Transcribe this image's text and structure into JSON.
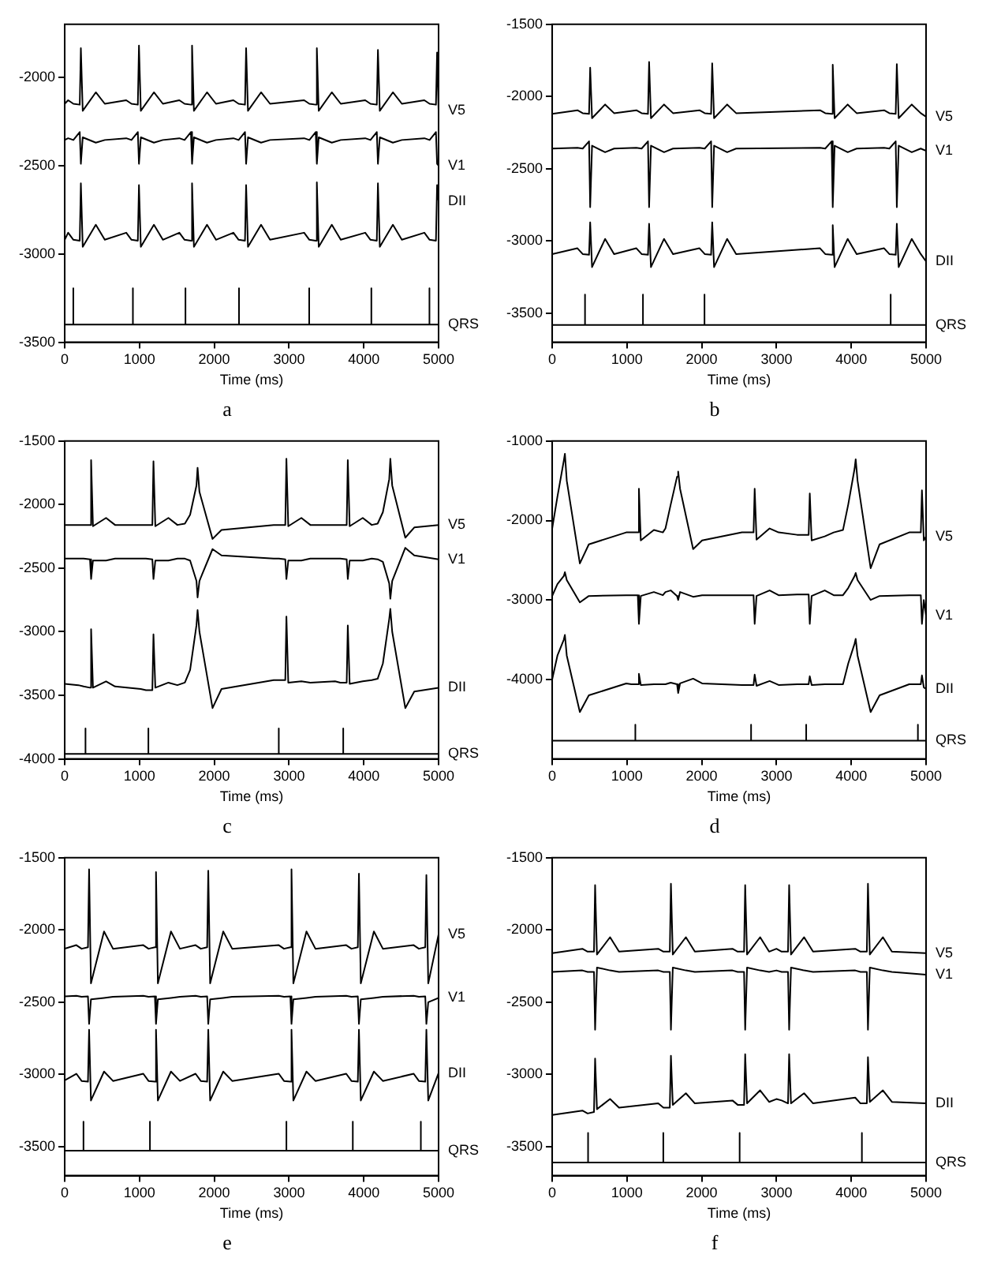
{
  "chart_data": [
    {
      "type": "line",
      "title": "a",
      "xlabel": "Time (ms)",
      "xlim": [
        0,
        5000
      ],
      "xticks": [
        0,
        1000,
        2000,
        3000,
        4000,
        5000
      ],
      "ylim": [
        -3500,
        -1700
      ],
      "yticks": [
        -3500,
        -3000,
        -2500,
        -2000
      ],
      "x": [
        0,
        46,
        116,
        201,
        216,
        241,
        416,
        536,
        823,
        893,
        978,
        993,
        1018,
        1193,
        1313,
        1533,
        1603,
        1688,
        1703,
        1728,
        1903,
        2023,
        2256,
        2326,
        2411,
        2426,
        2451,
        2626,
        2746,
        3202,
        3272,
        3357,
        3372,
        3397,
        3572,
        3692,
        4019,
        4089,
        4174,
        4189,
        4214,
        4389,
        4509,
        4810,
        4880,
        4965,
        4980,
        5000
      ],
      "series": [
        {
          "name": "V5",
          "color": "#000000",
          "values": [
            -2150,
            -2130,
            -2150,
            -2155,
            -1835,
            -2190,
            -2085,
            -2150,
            -2130,
            -2150,
            -2155,
            -1820,
            -2190,
            -2085,
            -2150,
            -2130,
            -2150,
            -2155,
            -1820,
            -2190,
            -2085,
            -2150,
            -2130,
            -2150,
            -2155,
            -1835,
            -2190,
            -2085,
            -2150,
            -2130,
            -2150,
            -2155,
            -1835,
            -2190,
            -2085,
            -2150,
            -2130,
            -2150,
            -2155,
            -1845,
            -2190,
            -2085,
            -2150,
            -2130,
            -2150,
            -2155,
            -1860,
            -2190
          ]
        },
        {
          "name": "V1",
          "color": "#000000",
          "values": [
            -2355,
            -2345,
            -2355,
            -2310,
            -2490,
            -2340,
            -2370,
            -2355,
            -2345,
            -2355,
            -2310,
            -2490,
            -2340,
            -2370,
            -2355,
            -2345,
            -2355,
            -2310,
            -2490,
            -2340,
            -2370,
            -2355,
            -2345,
            -2355,
            -2310,
            -2490,
            -2340,
            -2370,
            -2355,
            -2345,
            -2355,
            -2310,
            -2490,
            -2340,
            -2370,
            -2355,
            -2345,
            -2355,
            -2310,
            -2490,
            -2340,
            -2370,
            -2355,
            -2345,
            -2355,
            -2310,
            -2490,
            -2500
          ]
        },
        {
          "name": "DII",
          "color": "#000000",
          "values": [
            -2920,
            -2880,
            -2920,
            -2925,
            -2600,
            -2960,
            -2835,
            -2920,
            -2880,
            -2920,
            -2925,
            -2610,
            -2960,
            -2835,
            -2920,
            -2880,
            -2920,
            -2925,
            -2600,
            -2960,
            -2835,
            -2920,
            -2880,
            -2920,
            -2925,
            -2610,
            -2960,
            -2835,
            -2920,
            -2880,
            -2920,
            -2925,
            -2595,
            -2960,
            -2835,
            -2920,
            -2880,
            -2920,
            -2925,
            -2600,
            -2960,
            -2835,
            -2920,
            -2880,
            -2920,
            -2925,
            -2610,
            -2700
          ]
        },
        {
          "name": "QRS",
          "color": "#000000",
          "x": [
            0,
            115,
            115,
            115,
            912,
            912,
            912,
            1615,
            1615,
            1615,
            2331,
            2331,
            2331,
            3270,
            3270,
            3270,
            4101,
            4101,
            4101,
            4878,
            4878,
            4878,
            5000
          ],
          "values": [
            -3400,
            -3400,
            -3195,
            -3400,
            -3400,
            -3195,
            -3400,
            -3400,
            -3195,
            -3400,
            -3400,
            -3195,
            -3400,
            -3400,
            -3195,
            -3400,
            -3400,
            -3195,
            -3400,
            -3400,
            -3195,
            -3400,
            -3400
          ]
        }
      ]
    },
    {
      "type": "line",
      "title": "b",
      "xlabel": "Time (ms)",
      "xlim": [
        0,
        5000
      ],
      "xticks": [
        0,
        1000,
        2000,
        3000,
        4000,
        5000
      ],
      "ylim": [
        -3700,
        -1500
      ],
      "yticks": [
        -3500,
        -3000,
        -2500,
        -2000,
        -1500
      ],
      "x": [
        0,
        338,
        408,
        493,
        508,
        533,
        708,
        828,
        1126,
        1196,
        1281,
        1296,
        1321,
        1496,
        1616,
        1970,
        2040,
        2125,
        2140,
        2165,
        2340,
        2460,
        3582,
        3652,
        3737,
        3752,
        3777,
        3952,
        4072,
        4439,
        4509,
        4594,
        4609,
        4634,
        4809,
        4929,
        5000
      ],
      "series": [
        {
          "name": "V5",
          "color": "#000000",
          "values": [
            -2120,
            -2095,
            -2115,
            -2120,
            -1800,
            -2150,
            -2055,
            -2115,
            -2095,
            -2115,
            -2120,
            -1760,
            -2150,
            -2055,
            -2115,
            -2095,
            -2115,
            -2120,
            -1770,
            -2150,
            -2055,
            -2115,
            -2095,
            -2115,
            -2120,
            -1780,
            -2150,
            -2055,
            -2115,
            -2095,
            -2115,
            -2120,
            -1775,
            -2150,
            -2055,
            -2115,
            -2140
          ]
        },
        {
          "name": "V1",
          "color": "#000000",
          "values": [
            -2360,
            -2355,
            -2360,
            -2310,
            -2765,
            -2340,
            -2385,
            -2360,
            -2355,
            -2360,
            -2310,
            -2765,
            -2340,
            -2385,
            -2360,
            -2355,
            -2360,
            -2310,
            -2765,
            -2340,
            -2385,
            -2360,
            -2355,
            -2360,
            -2310,
            -2765,
            -2340,
            -2385,
            -2360,
            -2355,
            -2360,
            -2310,
            -2765,
            -2340,
            -2385,
            -2360,
            -2375
          ]
        },
        {
          "name": "DII",
          "color": "#000000",
          "values": [
            -3090,
            -3050,
            -3090,
            -3095,
            -2870,
            -3180,
            -2985,
            -3090,
            -3050,
            -3090,
            -3095,
            -2880,
            -3180,
            -2985,
            -3090,
            -3050,
            -3090,
            -3095,
            -2870,
            -3180,
            -2985,
            -3090,
            -3050,
            -3090,
            -3095,
            -2890,
            -3180,
            -2985,
            -3090,
            -3050,
            -3090,
            -3095,
            -2880,
            -3180,
            -2985,
            -3090,
            -3140
          ]
        },
        {
          "name": "QRS",
          "color": "#000000",
          "x": [
            0,
            439,
            439,
            439,
            1214,
            1214,
            1214,
            2037,
            2037,
            2037,
            4527,
            4527,
            4527,
            5000
          ],
          "values": [
            -3580,
            -3580,
            -3370,
            -3580,
            -3580,
            -3370,
            -3580,
            -3580,
            -3370,
            -3580,
            -3580,
            -3370,
            -3580,
            -3580
          ]
        }
      ]
    },
    {
      "type": "line",
      "title": "c",
      "xlabel": "Time (ms)",
      "xlim": [
        0,
        5000
      ],
      "xticks": [
        0,
        1000,
        2000,
        3000,
        4000,
        5000
      ],
      "ylim": [
        -4000,
        -1500
      ],
      "yticks": [
        -4000,
        -3500,
        -3000,
        -2500,
        -2000,
        -1500
      ],
      "x": [
        0,
        183,
        253,
        338,
        353,
        378,
        553,
        673,
        1017,
        1087,
        1172,
        1187,
        1212,
        1387,
        1507,
        1607,
        1677,
        1762,
        1777,
        1802,
        1977,
        2097,
        2795,
        2865,
        2950,
        2965,
        2990,
        3165,
        3285,
        3616,
        3686,
        3771,
        3786,
        3811,
        3986,
        4106,
        4185,
        4255,
        4340,
        4355,
        4380,
        4555,
        4675,
        5000
      ],
      "series": [
        {
          "name": "V5",
          "color": "#000000",
          "values": [
            -2160,
            -2160,
            -2160,
            -2160,
            -1650,
            -2170,
            -2105,
            -2160,
            -2160,
            -2160,
            -2160,
            -1660,
            -2170,
            -2105,
            -2160,
            -2150,
            -2080,
            -1850,
            -1710,
            -1900,
            -2270,
            -2200,
            -2160,
            -2160,
            -2160,
            -1640,
            -2170,
            -2105,
            -2160,
            -2160,
            -2160,
            -2160,
            -1650,
            -2170,
            -2105,
            -2160,
            -2150,
            -2060,
            -1800,
            -1640,
            -1850,
            -2260,
            -2180,
            -2160
          ]
        },
        {
          "name": "V1",
          "color": "#000000",
          "values": [
            -2425,
            -2425,
            -2425,
            -2430,
            -2585,
            -2440,
            -2440,
            -2425,
            -2425,
            -2425,
            -2430,
            -2585,
            -2440,
            -2440,
            -2425,
            -2425,
            -2440,
            -2600,
            -2730,
            -2600,
            -2350,
            -2400,
            -2425,
            -2425,
            -2430,
            -2585,
            -2440,
            -2440,
            -2425,
            -2425,
            -2425,
            -2430,
            -2585,
            -2440,
            -2440,
            -2425,
            -2430,
            -2450,
            -2620,
            -2740,
            -2600,
            -2340,
            -2400,
            -2430
          ]
        },
        {
          "name": "DII",
          "color": "#000000",
          "values": [
            -3410,
            -3420,
            -3430,
            -3440,
            -2980,
            -3440,
            -3390,
            -3430,
            -3450,
            -3460,
            -3460,
            -3020,
            -3440,
            -3400,
            -3420,
            -3400,
            -3300,
            -2950,
            -2830,
            -3000,
            -3600,
            -3450,
            -3380,
            -3380,
            -3380,
            -2880,
            -3400,
            -3390,
            -3400,
            -3390,
            -3400,
            -3400,
            -2950,
            -3410,
            -3390,
            -3380,
            -3370,
            -3250,
            -2900,
            -2820,
            -3000,
            -3600,
            -3470,
            -3440
          ]
        },
        {
          "name": "QRS",
          "color": "#000000",
          "x": [
            0,
            278,
            278,
            278,
            1119,
            1119,
            1119,
            2863,
            2863,
            2863,
            3725,
            3725,
            3725,
            5000
          ],
          "values": [
            -3960,
            -3960,
            -3760,
            -3960,
            -3960,
            -3760,
            -3960,
            -3960,
            -3760,
            -3960,
            -3960,
            -3760,
            -3960,
            -3960
          ]
        }
      ]
    },
    {
      "type": "line",
      "title": "d",
      "xlabel": "Time (ms)",
      "xlim": [
        0,
        5000
      ],
      "xticks": [
        0,
        1000,
        2000,
        3000,
        4000,
        5000
      ],
      "ylim": [
        -5000,
        -1000
      ],
      "yticks": [
        -4000,
        -3000,
        -2000,
        -1000
      ],
      "x": [
        0,
        70,
        155,
        170,
        195,
        370,
        490,
        990,
        1060,
        1145,
        1160,
        1185,
        1360,
        1480,
        1515,
        1585,
        1670,
        1685,
        1710,
        1885,
        2005,
        2538,
        2608,
        2693,
        2708,
        2733,
        2908,
        3028,
        3275,
        3345,
        3430,
        3445,
        3470,
        3645,
        3765,
        3889,
        3959,
        4044,
        4059,
        4084,
        4259,
        4379,
        4775,
        4845,
        4930,
        4945,
        4970,
        5000
      ],
      "series": [
        {
          "name": "V5",
          "color": "#000000",
          "values": [
            -2100,
            -1700,
            -1250,
            -1160,
            -1500,
            -2540,
            -2300,
            -2150,
            -2150,
            -2150,
            -1600,
            -2250,
            -2120,
            -2150,
            -2100,
            -1800,
            -1450,
            -1385,
            -1600,
            -2360,
            -2250,
            -2150,
            -2150,
            -2150,
            -1600,
            -2240,
            -2100,
            -2150,
            -2180,
            -2180,
            -2180,
            -1660,
            -2250,
            -2200,
            -2150,
            -2120,
            -1800,
            -1350,
            -1230,
            -1500,
            -2600,
            -2300,
            -2150,
            -2150,
            -2150,
            -1620,
            -2250,
            -2200
          ]
        },
        {
          "name": "V1",
          "color": "#000000",
          "values": [
            -2950,
            -2800,
            -2700,
            -2650,
            -2750,
            -3030,
            -2950,
            -2940,
            -2940,
            -2940,
            -3300,
            -2950,
            -2900,
            -2940,
            -2900,
            -2880,
            -2950,
            -3000,
            -2900,
            -2960,
            -2940,
            -2940,
            -2940,
            -2940,
            -3300,
            -2950,
            -2880,
            -2940,
            -2930,
            -2930,
            -2930,
            -3300,
            -2950,
            -2880,
            -2940,
            -2940,
            -2850,
            -2700,
            -2660,
            -2750,
            -3000,
            -2950,
            -2940,
            -2940,
            -2940,
            -3300,
            -3000,
            -3200
          ]
        },
        {
          "name": "DII",
          "color": "#000000",
          "values": [
            -4000,
            -3700,
            -3500,
            -3440,
            -3700,
            -4410,
            -4200,
            -4050,
            -4060,
            -4060,
            -3930,
            -4070,
            -4060,
            -4060,
            -4060,
            -4040,
            -4060,
            -4170,
            -4050,
            -3990,
            -4050,
            -4070,
            -4070,
            -4070,
            -3940,
            -4080,
            -4020,
            -4070,
            -4060,
            -4060,
            -4060,
            -3960,
            -4070,
            -4060,
            -4060,
            -4060,
            -3800,
            -3550,
            -3490,
            -3700,
            -4410,
            -4200,
            -4060,
            -4060,
            -4060,
            -3950,
            -4100,
            -4120
          ]
        },
        {
          "name": "QRS",
          "color": "#000000",
          "x": [
            0,
            1112,
            1112,
            1112,
            2660,
            2660,
            2660,
            3397,
            3397,
            3397,
            4891,
            4891,
            4891,
            5000
          ],
          "values": [
            -4770,
            -4770,
            -4570,
            -4770,
            -4770,
            -4570,
            -4770,
            -4770,
            -4570,
            -4770,
            -4770,
            -4570,
            -4770,
            -4770
          ]
        }
      ]
    },
    {
      "type": "line",
      "title": "e",
      "xlabel": "Time (ms)",
      "xlim": [
        0,
        5000
      ],
      "xticks": [
        0,
        1000,
        2000,
        3000,
        4000,
        5000
      ],
      "ylim": [
        -3700,
        -1500
      ],
      "yticks": [
        -3500,
        -3000,
        -2500,
        -2000,
        -1500
      ],
      "x": [
        0,
        156,
        226,
        311,
        326,
        351,
        526,
        646,
        1051,
        1121,
        1206,
        1221,
        1246,
        1421,
        1541,
        1750,
        1820,
        1905,
        1920,
        1945,
        2120,
        2240,
        2863,
        2933,
        3018,
        3033,
        3058,
        3233,
        3353,
        3765,
        3835,
        3920,
        3935,
        3960,
        4135,
        4255,
        4667,
        4737,
        4822,
        4837,
        4862,
        5000
      ],
      "series": [
        {
          "name": "V5",
          "color": "#000000",
          "values": [
            -2130,
            -2105,
            -2130,
            -2120,
            -1580,
            -2370,
            -2010,
            -2130,
            -2105,
            -2130,
            -2120,
            -1600,
            -2370,
            -2010,
            -2130,
            -2105,
            -2130,
            -2120,
            -1590,
            -2370,
            -2010,
            -2130,
            -2105,
            -2130,
            -2120,
            -1580,
            -2370,
            -2010,
            -2130,
            -2105,
            -2130,
            -2120,
            -1610,
            -2370,
            -2010,
            -2130,
            -2105,
            -2130,
            -2120,
            -1620,
            -2370,
            -2030
          ]
        },
        {
          "name": "V1",
          "color": "#000000",
          "values": [
            -2460,
            -2455,
            -2462,
            -2460,
            -2650,
            -2480,
            -2470,
            -2462,
            -2455,
            -2462,
            -2460,
            -2650,
            -2480,
            -2470,
            -2462,
            -2455,
            -2462,
            -2460,
            -2650,
            -2480,
            -2470,
            -2462,
            -2455,
            -2462,
            -2460,
            -2650,
            -2480,
            -2470,
            -2462,
            -2455,
            -2462,
            -2460,
            -2650,
            -2480,
            -2470,
            -2462,
            -2455,
            -2462,
            -2460,
            -2650,
            -2500,
            -2470
          ]
        },
        {
          "name": "DII",
          "color": "#000000",
          "values": [
            -3040,
            -2995,
            -3045,
            -3050,
            -2690,
            -3180,
            -2980,
            -3045,
            -2995,
            -3045,
            -3050,
            -2690,
            -3180,
            -2980,
            -3045,
            -2995,
            -3045,
            -3050,
            -2690,
            -3180,
            -2980,
            -3045,
            -2995,
            -3045,
            -3050,
            -2690,
            -3180,
            -2980,
            -3045,
            -2995,
            -3045,
            -3050,
            -2690,
            -3180,
            -2980,
            -3045,
            -2995,
            -3045,
            -3050,
            -2690,
            -3180,
            -2990
          ]
        },
        {
          "name": "QRS",
          "color": "#000000",
          "x": [
            0,
            251,
            251,
            251,
            1140,
            1140,
            1140,
            2965,
            2965,
            2965,
            3853,
            3853,
            3853,
            4763,
            4763,
            4763,
            5000
          ],
          "values": [
            -3527,
            -3527,
            -3327,
            -3527,
            -3527,
            -3327,
            -3527,
            -3527,
            -3327,
            -3527,
            -3527,
            -3327,
            -3527,
            -3527,
            -3327,
            -3527,
            -3527
          ]
        }
      ]
    },
    {
      "type": "line",
      "title": "f",
      "xlabel": "Time (ms)",
      "xlim": [
        0,
        5000
      ],
      "xticks": [
        0,
        1000,
        2000,
        3000,
        4000,
        5000
      ],
      "ylim": [
        -3700,
        -1500
      ],
      "yticks": [
        -3500,
        -3000,
        -2500,
        -2000,
        -1500
      ],
      "x": [
        0,
        404,
        474,
        559,
        574,
        599,
        774,
        894,
        1418,
        1488,
        1573,
        1588,
        1613,
        1788,
        1908,
        2411,
        2481,
        2566,
        2581,
        2606,
        2781,
        2901,
        2999,
        3069,
        3154,
        3169,
        3194,
        3369,
        3489,
        4053,
        4123,
        4208,
        4223,
        4248,
        4423,
        4543,
        5000
      ],
      "series": [
        {
          "name": "V5",
          "color": "#000000",
          "values": [
            -2160,
            -2130,
            -2150,
            -2150,
            -1690,
            -2170,
            -2050,
            -2150,
            -2130,
            -2150,
            -2150,
            -1680,
            -2170,
            -2050,
            -2150,
            -2130,
            -2150,
            -2150,
            -1690,
            -2170,
            -2050,
            -2150,
            -2130,
            -2150,
            -2150,
            -1690,
            -2170,
            -2050,
            -2150,
            -2130,
            -2150,
            -2150,
            -1680,
            -2170,
            -2050,
            -2150,
            -2160
          ]
        },
        {
          "name": "V1",
          "color": "#000000",
          "values": [
            -2290,
            -2280,
            -2290,
            -2290,
            -2690,
            -2260,
            -2280,
            -2290,
            -2280,
            -2290,
            -2290,
            -2690,
            -2260,
            -2280,
            -2290,
            -2280,
            -2290,
            -2290,
            -2690,
            -2260,
            -2280,
            -2290,
            -2280,
            -2290,
            -2290,
            -2690,
            -2260,
            -2280,
            -2290,
            -2280,
            -2290,
            -2290,
            -2690,
            -2260,
            -2280,
            -2290,
            -2310
          ]
        },
        {
          "name": "DII",
          "color": "#000000",
          "values": [
            -3280,
            -3250,
            -3270,
            -3260,
            -2890,
            -3240,
            -3170,
            -3230,
            -3200,
            -3230,
            -3230,
            -2870,
            -3210,
            -3130,
            -3200,
            -3180,
            -3210,
            -3210,
            -2860,
            -3200,
            -3110,
            -3190,
            -3170,
            -3180,
            -3200,
            -2860,
            -3200,
            -3130,
            -3200,
            -3160,
            -3200,
            -3200,
            -2880,
            -3190,
            -3110,
            -3190,
            -3200
          ]
        },
        {
          "name": "QRS",
          "color": "#000000",
          "x": [
            0,
            480,
            480,
            480,
            1486,
            1486,
            1486,
            2507,
            2507,
            2507,
            4142,
            4142,
            4142,
            5000
          ],
          "values": [
            -3610,
            -3610,
            -3405,
            -3610,
            -3610,
            -3405,
            -3610,
            -3610,
            -3405,
            -3610,
            -3610,
            -3405,
            -3610,
            -3610
          ]
        }
      ]
    }
  ]
}
